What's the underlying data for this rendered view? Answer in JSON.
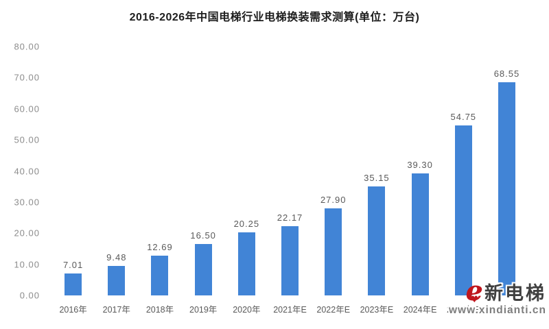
{
  "chart_data": {
    "type": "bar",
    "title": "2016-2026年中国电梯行业电梯换装需求测算(单位：万台)",
    "categories": [
      "2016年",
      "2017年",
      "2018年",
      "2019年",
      "2020年",
      "2021年E",
      "2022年E",
      "2023年E",
      "2024年E",
      "2025年E",
      "2026年E"
    ],
    "values": [
      7.01,
      9.48,
      12.69,
      16.5,
      20.25,
      22.17,
      27.9,
      35.15,
      39.3,
      54.75,
      68.55
    ],
    "data_labels": [
      "7.01",
      "9.48",
      "12.69",
      "16.50",
      "20.25",
      "22.17",
      "27.90",
      "35.15",
      "39.30",
      "54.75",
      "68.55"
    ],
    "xlabel": "",
    "ylabel": "",
    "ylim": [
      0,
      80
    ],
    "ytick_interval": 10,
    "yticks": [
      "80.00",
      "70.00",
      "60.00",
      "50.00",
      "40.00",
      "30.00",
      "20.00",
      "10.00",
      "0.00"
    ],
    "grid": false,
    "legend": false,
    "bar_color": "#4184d6"
  },
  "watermark": {
    "logo_letter": "e",
    "logo_heart": "♥",
    "brand": "新电梯",
    "url": "www.xindianti.cn",
    "logo_color": "#c0161d"
  }
}
